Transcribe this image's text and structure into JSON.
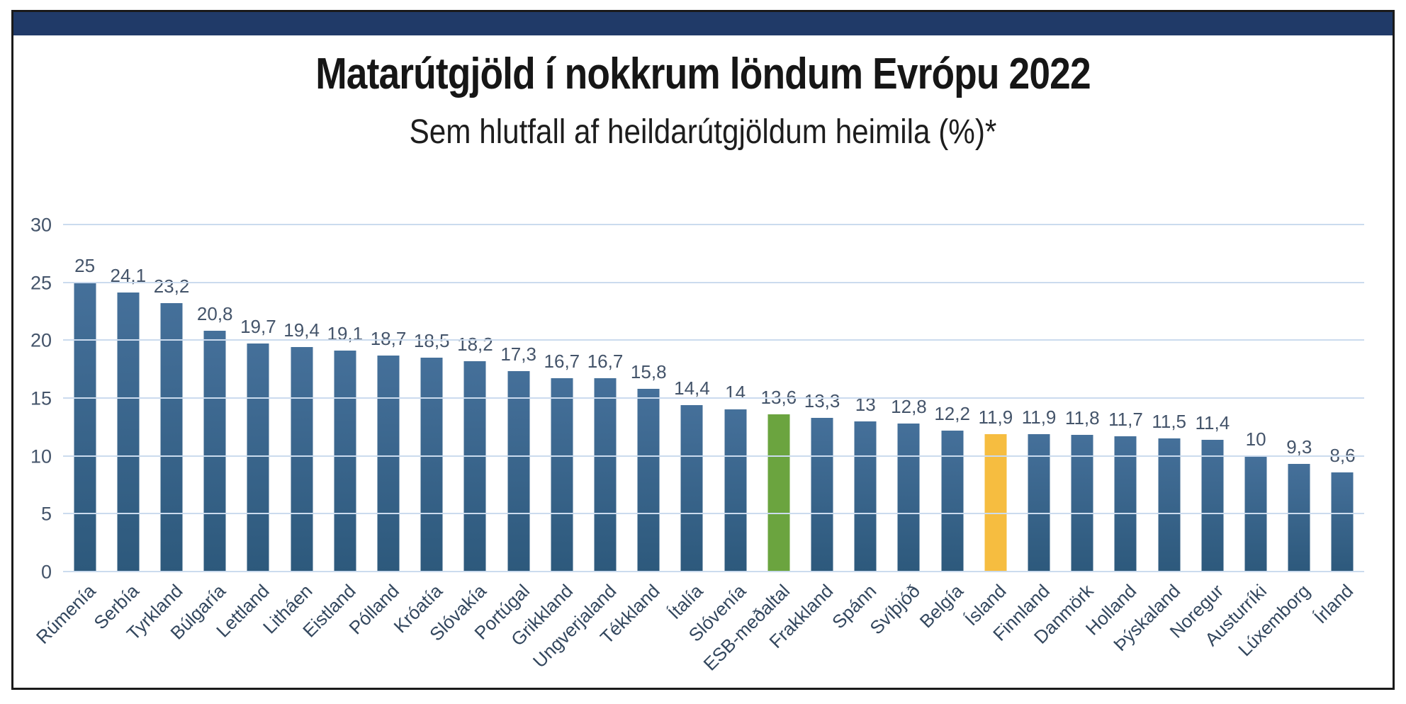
{
  "page": {
    "topbar_color": "#203A68",
    "frame_border_color": "#1a1a1a",
    "background_color": "#ffffff"
  },
  "chart_data": {
    "type": "bar",
    "title": "Matarútgjöld í nokkrum löndum Evrópu 2022",
    "subtitle": "Sem hlutfall af heildarútgjöldum heimila (%)*",
    "xlabel": "",
    "ylabel": "",
    "ylim": [
      0,
      30
    ],
    "yticks": [
      0,
      5,
      10,
      15,
      20,
      25,
      30
    ],
    "grid": true,
    "legend": "none",
    "categories": [
      "Rúmenía",
      "Serbía",
      "Tyrkland",
      "Búlgaría",
      "Lettland",
      "Litháen",
      "Eistland",
      "Pólland",
      "Króatía",
      "Slóvakía",
      "Portúgal",
      "Grikkland",
      "Ungverjaland",
      "Tékkland",
      "Ítalía",
      "Slóvenía",
      "ESB-meðaltal",
      "Frakkland",
      "Spánn",
      "Svíþjóð",
      "Belgía",
      "Ísland",
      "Finnland",
      "Danmörk",
      "Holland",
      "Þýskaland",
      "Noregur",
      "Austurríki",
      "Lúxemborg",
      "Írland"
    ],
    "values": [
      25,
      24.1,
      23.2,
      20.8,
      19.7,
      19.4,
      19.1,
      18.7,
      18.5,
      18.2,
      17.3,
      16.7,
      16.7,
      15.8,
      14.4,
      14,
      13.6,
      13.3,
      13,
      12.8,
      12.2,
      11.9,
      11.9,
      11.8,
      11.7,
      11.5,
      11.4,
      10,
      9.3,
      8.6
    ],
    "value_labels": [
      "25",
      "24,1",
      "23,2",
      "20,8",
      "19,7",
      "19,4",
      "19,1",
      "18,7",
      "18,5",
      "18,2",
      "17,3",
      "16,7",
      "16,7",
      "15,8",
      "14,4",
      "14",
      "13,6",
      "13,3",
      "13",
      "12,8",
      "12,2",
      "11,9",
      "11,9",
      "11,8",
      "11,7",
      "11,5",
      "11,4",
      "10",
      "9,3",
      "8,6"
    ],
    "highlights": {
      "green_category": "ESB-meðaltal",
      "yellow_category": "Ísland"
    },
    "colors": {
      "bar_top": "#45709A",
      "bar_bottom": "#2D597C",
      "bar_green": "#6BA43F",
      "bar_yellow": "#F6BD40",
      "gridline": "#CBDBEE",
      "tick_text": "#44546A",
      "xlabel_text": "#33475E"
    }
  }
}
